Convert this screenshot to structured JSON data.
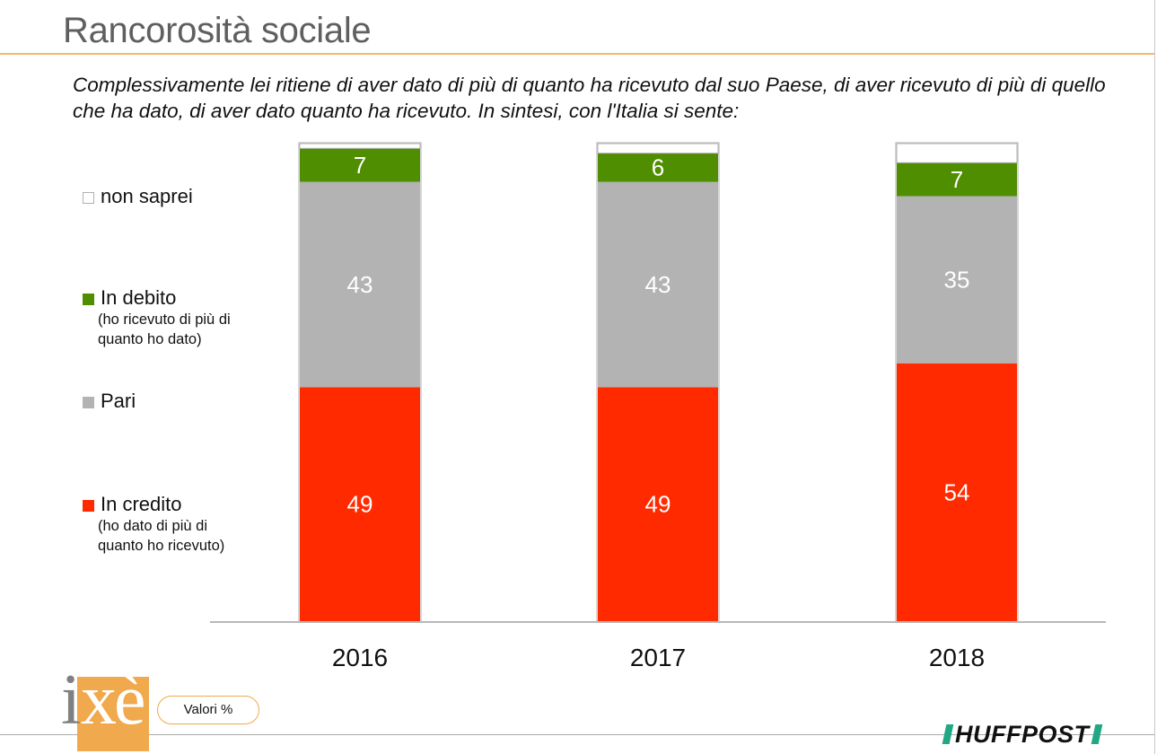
{
  "title": "Rancorosità sociale",
  "question": "Complessivamente lei ritiene di aver dato di più di quanto ha ricevuto dal suo Paese, di aver ricevuto di più di quello che ha dato, di aver dato quanto ha ricevuto. In sintesi, con l'Italia si sente:",
  "legend": [
    {
      "key": "non_saprei",
      "label": "non saprei",
      "sub": [],
      "color": "#ffffff"
    },
    {
      "key": "in_debito",
      "label": "In debito",
      "sub": [
        "(ho ricevuto di più di",
        "quanto ho dato)"
      ],
      "color": "#4f8e00"
    },
    {
      "key": "pari",
      "label": "Pari",
      "sub": [],
      "color": "#b3b3b3"
    },
    {
      "key": "in_credito",
      "label": "In credito",
      "sub": [
        "(ho dato di più di",
        "quanto ho ricevuto)"
      ],
      "color": "#ff2a00"
    }
  ],
  "values_note": "Valori %",
  "logos": {
    "left": "ixè",
    "right": "HUFFPOST"
  },
  "chart_data": {
    "type": "bar",
    "stacked": true,
    "title": "Rancorosità sociale",
    "xlabel": "",
    "ylabel": "",
    "ylim": [
      0,
      100
    ],
    "categories": [
      "2016",
      "2017",
      "2018"
    ],
    "series": [
      {
        "name": "In credito",
        "color": "#ff2a00",
        "values": [
          49,
          49,
          54
        ],
        "labels": [
          "49",
          "49",
          "54"
        ]
      },
      {
        "name": "Pari",
        "color": "#b3b3b3",
        "values": [
          43,
          43,
          35
        ],
        "labels": [
          "43",
          "43",
          "35"
        ]
      },
      {
        "name": "In debito",
        "color": "#4f8e00",
        "values": [
          7,
          6,
          7
        ],
        "labels": [
          "7",
          "6",
          "7"
        ]
      },
      {
        "name": "non saprei",
        "color": "#ffffff",
        "values": [
          1,
          2,
          4
        ],
        "labels": [
          "",
          "",
          ""
        ]
      }
    ],
    "grid": false,
    "legend_position": "left",
    "unit": "%"
  }
}
